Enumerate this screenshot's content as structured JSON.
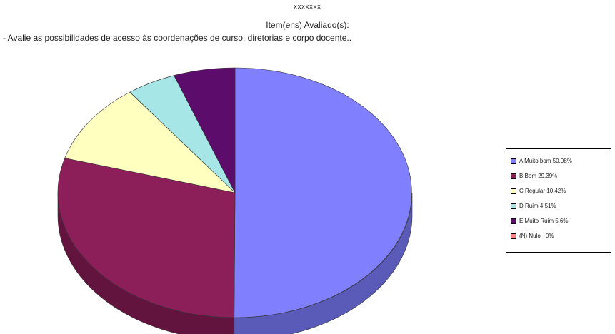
{
  "header": {
    "code": "xxxxxxx",
    "item_label": "Item(ens) Avaliado(s):",
    "question": "- Avalie as possibilidades de acesso às coordenações de curso, diretorias e corpo docente.."
  },
  "chart_data": {
    "type": "pie",
    "three_d": true,
    "legend_position": "right",
    "series": [
      {
        "name": "A Muito bom 50,08%",
        "value": 50.08,
        "color": "#8080ff",
        "side_color": "#5a5ab8"
      },
      {
        "name": "B Bom 29,39%",
        "value": 29.39,
        "color": "#8c1f5a",
        "side_color": "#62143e"
      },
      {
        "name": "C Regular 10,42%",
        "value": 10.42,
        "color": "#ffffc0",
        "side_color": "#c8c890"
      },
      {
        "name": "D Ruim 4,51%",
        "value": 4.51,
        "color": "#a6e6e6",
        "side_color": "#78a8a8"
      },
      {
        "name": "E Muito Ruim 5,6%",
        "value": 5.6,
        "color": "#5c0d6b",
        "side_color": "#3d074a"
      },
      {
        "name": "(N) Nulo - 0%",
        "value": 0,
        "color": "#ff8080",
        "side_color": "#b85a5a"
      }
    ]
  }
}
